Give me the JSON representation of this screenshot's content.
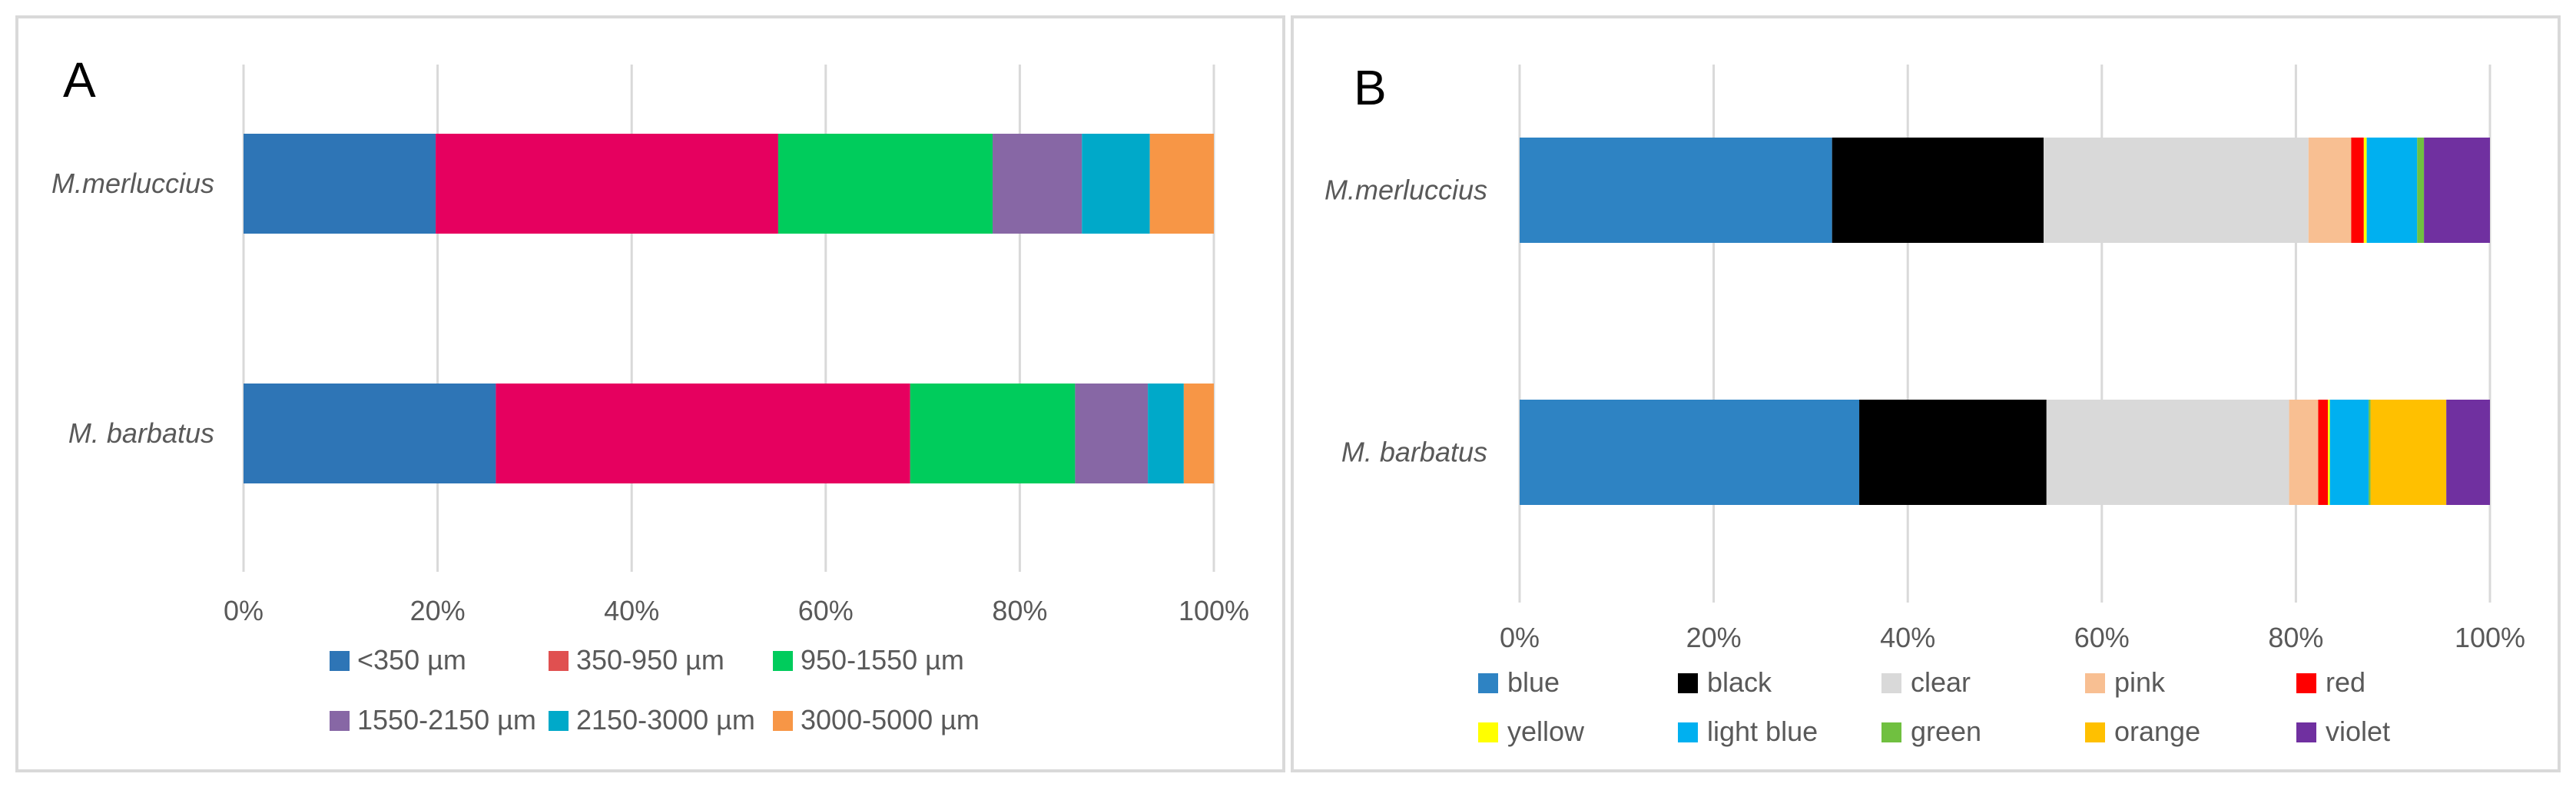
{
  "chart_data": [
    {
      "panel_label": "A",
      "type": "bar",
      "orientation": "horizontal",
      "stacked": "100%",
      "categories": [
        "M.merluccius",
        "M. barbatus"
      ],
      "series": [
        {
          "name": "<350 µm",
          "color": "#2E75B6",
          "values": [
            19.8,
            26.0
          ]
        },
        {
          "name": "350-950 µm",
          "color": "#E6005F",
          "values": [
            35.3,
            42.7
          ]
        },
        {
          "name": "950-1550 µm",
          "color": "#00CC5C",
          "values": [
            22.1,
            17.0
          ]
        },
        {
          "name": "1550-2150 µm",
          "color": "#8767A5",
          "values": [
            9.2,
            7.5
          ]
        },
        {
          "name": "2150-3000 µm",
          "color": "#00A9C9",
          "values": [
            7.0,
            3.7
          ]
        },
        {
          "name": "3000-5000 µm",
          "color": "#F79646",
          "values": [
            6.6,
            3.1
          ]
        }
      ],
      "legend_swatch_colors": [
        "#2E75B6",
        "#E05050",
        "#00CC5C",
        "#8767A5",
        "#00A9C9",
        "#F79646"
      ],
      "xlim": [
        0,
        100
      ],
      "xticks": [
        "0%",
        "20%",
        "40%",
        "60%",
        "80%",
        "100%"
      ],
      "grid": true,
      "legend_position": "bottom"
    },
    {
      "panel_label": "B",
      "type": "bar",
      "orientation": "horizontal",
      "stacked": "100%",
      "categories": [
        "M.merluccius",
        "M. barbatus"
      ],
      "series": [
        {
          "name": "blue",
          "color": "#2E83C3",
          "values": [
            32.2,
            35.0
          ]
        },
        {
          "name": "black",
          "color": "#000000",
          "values": [
            21.8,
            19.3
          ]
        },
        {
          "name": "clear",
          "color": "#D9D9D9",
          "values": [
            27.3,
            25.0
          ]
        },
        {
          "name": "pink",
          "color": "#F8BF92",
          "values": [
            4.4,
            3.0
          ]
        },
        {
          "name": "red",
          "color": "#FF0000",
          "values": [
            1.3,
            1.0
          ]
        },
        {
          "name": "yellow",
          "color": "#FFFF00",
          "values": [
            0.3,
            0.2
          ]
        },
        {
          "name": "light blue",
          "color": "#00B0F0",
          "values": [
            5.2,
            4.0
          ]
        },
        {
          "name": "green",
          "color": "#70C040",
          "values": [
            0.7,
            0.2
          ]
        },
        {
          "name": "orange",
          "color": "#FFC000",
          "values": [
            0.0,
            7.8
          ]
        },
        {
          "name": "violet",
          "color": "#7030A0",
          "values": [
            6.8,
            4.5
          ]
        }
      ],
      "xlim": [
        0,
        100
      ],
      "xticks": [
        "0%",
        "20%",
        "40%",
        "60%",
        "80%",
        "100%"
      ],
      "grid": true,
      "legend_position": "bottom"
    }
  ]
}
